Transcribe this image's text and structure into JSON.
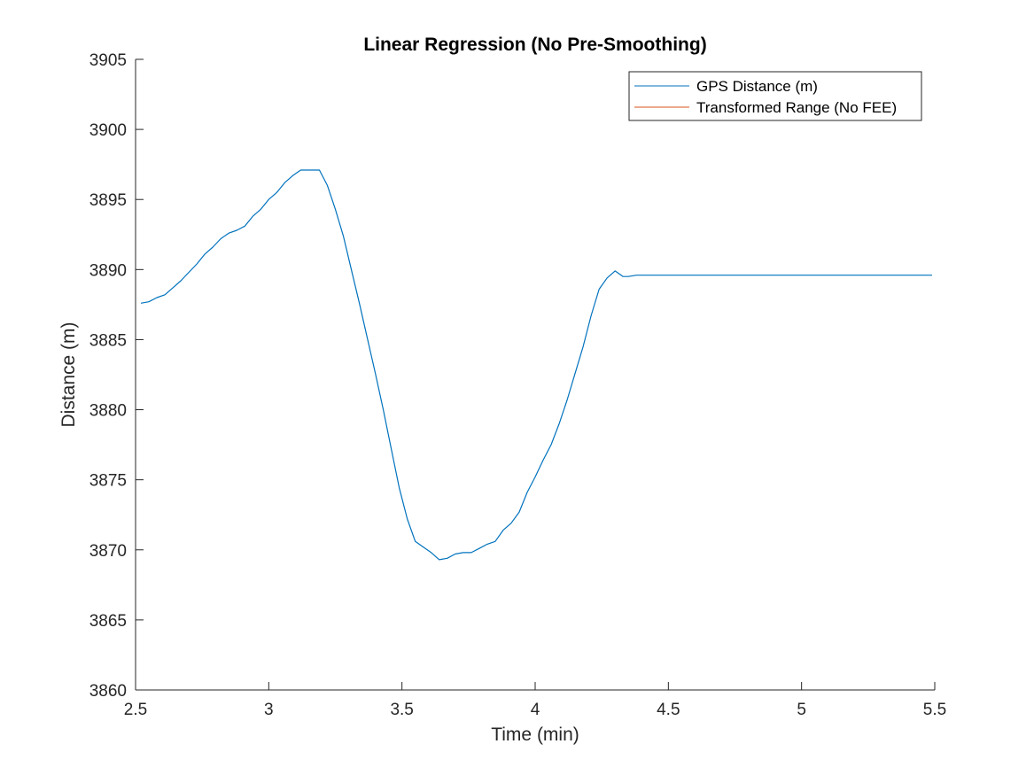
{
  "chart_data": {
    "type": "line",
    "title": "Linear Regression (No Pre-Smoothing)",
    "xlabel": "Time (min)",
    "ylabel": "Distance (m)",
    "xlim": [
      2.5,
      5.5
    ],
    "ylim": [
      3860,
      3905
    ],
    "xticks": [
      2.5,
      3,
      3.5,
      4,
      4.5,
      5,
      5.5
    ],
    "xtick_labels": [
      "2.5",
      "3",
      "3.5",
      "4",
      "4.5",
      "5",
      "5.5"
    ],
    "yticks": [
      3860,
      3865,
      3870,
      3875,
      3880,
      3885,
      3890,
      3895,
      3900,
      3905
    ],
    "ytick_labels": [
      "3860",
      "3865",
      "3870",
      "3875",
      "3880",
      "3885",
      "3890",
      "3895",
      "3900",
      "3905"
    ],
    "grid": false,
    "legend_position": "top-right",
    "series": [
      {
        "name": "GPS Distance (m)",
        "color": "#0072BD",
        "x": [
          2.52,
          2.55,
          2.58,
          2.61,
          2.64,
          2.67,
          2.7,
          2.73,
          2.76,
          2.79,
          2.82,
          2.85,
          2.88,
          2.91,
          2.94,
          2.97,
          3.0,
          3.03,
          3.06,
          3.09,
          3.12,
          3.15,
          3.17,
          3.19,
          3.22,
          3.25,
          3.28,
          3.31,
          3.34,
          3.37,
          3.4,
          3.43,
          3.46,
          3.49,
          3.52,
          3.55,
          3.58,
          3.61,
          3.64,
          3.67,
          3.7,
          3.73,
          3.76,
          3.79,
          3.82,
          3.85,
          3.88,
          3.91,
          3.94,
          3.97,
          4.0,
          4.03,
          4.06,
          4.09,
          4.12,
          4.15,
          4.18,
          4.21,
          4.24,
          4.27,
          4.3,
          4.33,
          4.35,
          4.38,
          4.4,
          4.42,
          4.44,
          4.47,
          4.5,
          5.0,
          5.49
        ],
        "y": [
          3887.6,
          3887.7,
          3888.0,
          3888.2,
          3888.7,
          3889.2,
          3889.8,
          3890.4,
          3891.1,
          3891.6,
          3892.2,
          3892.6,
          3892.8,
          3893.1,
          3893.8,
          3894.3,
          3895.0,
          3895.5,
          3896.2,
          3896.7,
          3897.1,
          3897.1,
          3897.1,
          3897.1,
          3896.0,
          3894.3,
          3892.4,
          3890.0,
          3887.6,
          3885.1,
          3882.6,
          3880.0,
          3877.2,
          3874.4,
          3872.2,
          3870.6,
          3870.2,
          3869.8,
          3869.3,
          3869.4,
          3869.7,
          3869.8,
          3869.8,
          3870.1,
          3870.4,
          3870.6,
          3871.4,
          3871.9,
          3872.7,
          3874.1,
          3875.2,
          3876.4,
          3877.5,
          3879.0,
          3880.7,
          3882.6,
          3884.5,
          3886.7,
          3888.6,
          3889.4,
          3889.9,
          3889.5,
          3889.5,
          3889.6,
          3889.6,
          3889.6,
          3889.6,
          3889.6,
          3889.6,
          3889.6,
          3889.6
        ]
      },
      {
        "name": "Transformed Range (No FEE)",
        "color": "#D95319",
        "x": [],
        "y": []
      }
    ]
  }
}
